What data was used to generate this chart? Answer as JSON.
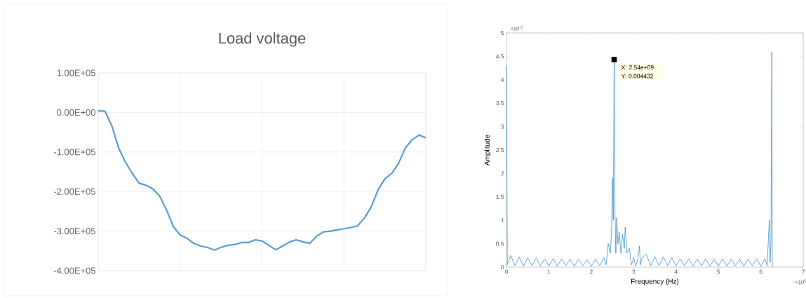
{
  "chart_data": [
    {
      "type": "line",
      "title": "Load voltage",
      "categories": [
        null,
        null,
        null,
        null,
        null,
        null,
        null,
        null,
        null,
        null,
        null,
        null,
        null,
        null,
        null,
        null,
        null,
        null,
        null,
        null,
        null,
        null,
        null,
        null,
        null,
        null,
        null,
        null,
        null,
        null,
        null,
        null,
        null,
        null,
        null,
        null,
        null,
        null,
        null,
        null,
        null,
        null,
        null,
        null,
        null,
        null,
        null,
        null,
        null
      ],
      "values": [
        4000,
        3000,
        -34000,
        -90000,
        -126000,
        -154000,
        -179000,
        -184000,
        -193000,
        -211000,
        -246000,
        -288000,
        -310000,
        -318000,
        -331000,
        -338000,
        -341000,
        -348000,
        -341000,
        -336000,
        -334000,
        -329000,
        -329000,
        -322000,
        -325000,
        -336000,
        -347000,
        -338000,
        -328000,
        -322000,
        -327000,
        -331000,
        -313000,
        -302000,
        -300000,
        -297000,
        -294000,
        -291000,
        -287000,
        -267000,
        -239000,
        -196000,
        -168000,
        -154000,
        -129000,
        -90000,
        -69000,
        -57000,
        -64000
      ],
      "color": "#5b9bd5",
      "ylim": [
        -400000,
        100000
      ],
      "yticks": [
        {
          "value": -400000,
          "label": "-4.00E+05"
        },
        {
          "value": -300000,
          "label": "-3.00E+05"
        },
        {
          "value": -200000,
          "label": "-2.00E+05"
        },
        {
          "value": -100000,
          "label": "-1.00E+05"
        },
        {
          "value": 0,
          "label": "0.00E+00"
        },
        {
          "value": 100000,
          "label": "1.00E+05"
        }
      ],
      "grid": true,
      "tick_labels": "y"
    },
    {
      "type": "line",
      "xlabel": "Frequency (Hz)",
      "ylabel": "Amplitude",
      "xlim": [
        0,
        7
      ],
      "xticks": [
        0,
        1,
        2,
        3,
        4,
        5,
        6,
        7
      ],
      "ylim": [
        0,
        5
      ],
      "yticks": [
        0,
        0.5,
        1,
        1.5,
        2,
        2.5,
        3,
        3.5,
        4,
        4.5,
        5
      ],
      "series": [
        {
          "type": "line",
          "color": "#0072bd",
          "x": [
            0,
            0.02,
            0.1,
            0.2,
            0.3,
            0.4,
            0.5,
            0.6,
            0.7,
            0.8,
            0.9,
            1.0,
            1.1,
            1.2,
            1.3,
            1.4,
            1.5,
            1.6,
            1.7,
            1.8,
            1.9,
            2.0,
            2.1,
            2.2,
            2.3,
            2.35,
            2.4,
            2.45,
            2.48,
            2.5,
            2.52,
            2.54,
            2.56,
            2.58,
            2.6,
            2.63,
            2.66,
            2.7,
            2.74,
            2.78,
            2.8,
            2.84,
            2.9,
            2.95,
            3.0,
            3.05,
            3.1,
            3.14,
            3.16,
            3.2,
            3.3,
            3.4,
            3.5,
            3.6,
            3.7,
            3.8,
            3.9,
            4.0,
            4.1,
            4.2,
            4.3,
            4.4,
            4.5,
            4.6,
            4.7,
            4.8,
            4.9,
            5.0,
            5.1,
            5.2,
            5.3,
            5.4,
            5.5,
            5.6,
            5.7,
            5.8,
            5.9,
            6.0,
            6.1,
            6.15,
            6.2,
            6.22,
            6.24,
            6.26,
            6.27
          ],
          "values": [
            4.3,
            0.05,
            0.25,
            0.03,
            0.22,
            0.02,
            0.2,
            0.03,
            0.2,
            0.02,
            0.18,
            0.03,
            0.18,
            0.02,
            0.18,
            0.03,
            0.17,
            0.02,
            0.17,
            0.03,
            0.16,
            0.02,
            0.17,
            0.03,
            0.2,
            0.05,
            0.5,
            0.3,
            0.8,
            1.9,
            1.0,
            4.432,
            1.2,
            0.3,
            1.05,
            0.5,
            0.75,
            0.3,
            0.7,
            0.4,
            0.85,
            0.3,
            0.4,
            0.05,
            0.2,
            0.03,
            0.18,
            0.45,
            0.05,
            0.2,
            0.28,
            0.03,
            0.22,
            0.03,
            0.22,
            0.03,
            0.2,
            0.03,
            0.18,
            0.03,
            0.18,
            0.02,
            0.17,
            0.03,
            0.18,
            0.02,
            0.17,
            0.03,
            0.18,
            0.02,
            0.17,
            0.03,
            0.17,
            0.02,
            0.17,
            0.03,
            0.18,
            0.02,
            0.18,
            0.03,
            1.0,
            0.1,
            0.6,
            4.6,
            0.0
          ]
        },
        {
          "type": "scatter",
          "color": "#000000",
          "marker": "square",
          "x": [
            2.54
          ],
          "values": [
            4.432
          ]
        }
      ],
      "annotations": [
        "×10$^{-3}$",
        "×10$^{9}$",
        {
          "text": "X: 2.54e+09",
          "x": 2.54,
          "y": 4.432
        },
        {
          "text": "Y: 0.004432",
          "x": 2.54,
          "y": 4.432
        }
      ]
    }
  ]
}
